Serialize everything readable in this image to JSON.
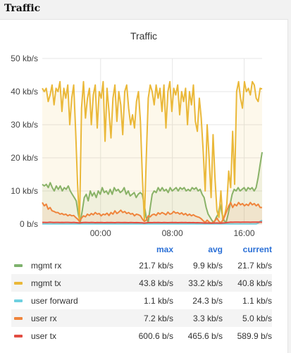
{
  "page": {
    "section_title": "Traffic",
    "panel_title": "Traffic"
  },
  "legend": {
    "headers": [
      "max",
      "avg",
      "current"
    ]
  },
  "chart_data": {
    "type": "line",
    "title": "Traffic",
    "y_unit": "kb/s",
    "ylim": [
      0,
      50
    ],
    "y_ticks": [
      "0 b/s",
      "10 kb/s",
      "20 kb/s",
      "30 kb/s",
      "40 kb/s",
      "50 kb/s"
    ],
    "y_tick_values": [
      0,
      10,
      20,
      30,
      40,
      50
    ],
    "x_range_hours": [
      -6.5,
      18
    ],
    "x_ticks": [
      "00:00",
      "08:00",
      "16:00"
    ],
    "x_tick_values": [
      0,
      8,
      16
    ],
    "grid": true,
    "series": [
      {
        "name": "mgmt rx",
        "color": "#7eb26d",
        "fill": true,
        "max": "21.7 kb/s",
        "avg": "9.9 kb/s",
        "current": "21.7 kb/s",
        "values": [
          12,
          11.5,
          12,
          11,
          12.5,
          11,
          10,
          11.5,
          10.5,
          11.5,
          10,
          11,
          10.5,
          11.5,
          10,
          9,
          8,
          7,
          3,
          0.5,
          4,
          8,
          9,
          7,
          10,
          8.5,
          9.5,
          8,
          10,
          9,
          11,
          9.5,
          10,
          9,
          10.5,
          9,
          11,
          10,
          10.5,
          9.5,
          10,
          11,
          9,
          10,
          8.5,
          9,
          9.5,
          8,
          9,
          9.5,
          9,
          6,
          2,
          0.5,
          5,
          9,
          10,
          9.5,
          11,
          10,
          11,
          10,
          10.5,
          9.5,
          11,
          10,
          10.5,
          11,
          10,
          11,
          10.5,
          11,
          10,
          10.5,
          10,
          11,
          10.5,
          11,
          10,
          10.5,
          9,
          8,
          5,
          3,
          2,
          1,
          0.5,
          2,
          3,
          6,
          3,
          1,
          0.5,
          3,
          6,
          9,
          10.5,
          10,
          11,
          10,
          10.5,
          11,
          10,
          11,
          10.5,
          11,
          10,
          11,
          14,
          18,
          21.7
        ]
      },
      {
        "name": "mgmt tx",
        "color": "#eab839",
        "fill": true,
        "max": "43.8 kb/s",
        "avg": "33.2 kb/s",
        "current": "40.8 kb/s",
        "values": [
          41,
          40,
          41,
          37,
          39,
          42,
          36,
          41,
          40,
          43,
          34,
          41,
          38,
          42,
          30,
          38,
          42,
          28,
          12,
          0.5,
          35,
          43,
          32,
          38,
          41,
          30,
          39,
          42,
          29,
          40,
          38,
          43,
          25,
          41,
          34,
          26,
          38,
          42,
          31,
          40,
          36,
          27,
          40,
          42,
          35,
          30,
          33,
          29,
          37,
          40,
          31,
          14,
          1,
          20,
          38,
          42,
          40,
          36,
          42,
          38,
          41,
          34,
          42,
          29,
          40,
          43,
          34,
          41,
          39,
          42,
          33,
          40,
          37,
          41,
          30,
          40,
          36,
          42,
          31,
          28,
          38,
          32,
          22,
          10,
          30,
          20,
          8,
          27,
          14,
          4,
          2,
          10,
          1,
          3,
          6,
          16,
          11,
          28,
          12,
          40,
          43,
          38,
          35,
          43,
          40,
          41,
          39,
          43,
          42,
          38,
          37,
          41,
          40.8
        ]
      },
      {
        "name": "user forward",
        "color": "#6ed0e0",
        "fill": false,
        "max": "1.1 kb/s",
        "avg": "24.3 b/s",
        "current": "1.1 kb/s",
        "values": [
          0.05,
          0.05,
          0.05,
          0.05,
          0.05,
          0.05,
          0.05,
          0.05,
          0.05,
          0.05,
          0.05,
          0.05,
          0.05,
          0.05,
          0.05,
          0.05,
          0.05,
          0.05,
          0.05,
          0.05,
          0.05,
          0.05,
          0.05,
          0.05,
          0.05,
          0.05,
          0.05,
          0.05,
          0.05,
          0.05,
          0.05,
          0.05,
          0.05,
          0.05,
          0.05,
          0.05,
          0.05,
          0.05,
          0.05,
          0.05,
          0.05,
          0.05,
          0.05,
          0.05,
          0.05,
          0.05,
          0.05,
          0.05,
          0.05,
          0.05,
          0.05,
          0.05,
          0.05,
          0.05,
          0.05,
          0.05,
          0.05,
          0.05,
          0.05,
          0.05,
          0.05,
          0.05,
          0.05,
          0.05,
          0.05,
          0.05,
          0.05,
          0.05,
          0.05,
          0.05,
          0.05,
          0.05,
          0.05,
          0.05,
          0.05,
          0.05,
          0.05,
          0.05,
          0.05,
          0.05,
          0.05,
          0.05,
          0.05,
          0.05,
          0.05,
          0.05,
          0.05,
          0.05,
          0.05,
          0.05,
          0.05,
          0.05,
          0.05,
          0.05,
          0.05,
          0.05,
          0.05,
          0.05,
          0.05,
          0.05,
          0.05,
          0.05,
          0.05,
          0.05,
          0.05,
          0.05,
          0.05,
          0.05,
          0.05,
          0.05,
          0.3,
          0.8,
          1.1
        ]
      },
      {
        "name": "user rx",
        "color": "#ef843c",
        "fill": true,
        "max": "7.2 kb/s",
        "avg": "3.3 kb/s",
        "current": "5.0 kb/s",
        "values": [
          6.5,
          5.5,
          6,
          4.5,
          5,
          4,
          3.8,
          3.5,
          3.5,
          3,
          3.2,
          2.8,
          3,
          2.5,
          2.8,
          2.5,
          2.6,
          2,
          1.5,
          0.8,
          1.8,
          2.5,
          2.2,
          3,
          2.6,
          3.2,
          2.8,
          3.5,
          3,
          3.2,
          2.5,
          3,
          2.8,
          3.3,
          2.6,
          3.5,
          3,
          4,
          3.2,
          3.6,
          4.2,
          3.5,
          3.8,
          3.2,
          3.5,
          3,
          3.2,
          2.5,
          3,
          2.8,
          2.5,
          1.5,
          0.8,
          1.2,
          2.5,
          2.2,
          2.8,
          3,
          2.6,
          3.4,
          3,
          3.5,
          3.2,
          2.8,
          3.6,
          3,
          3.2,
          3.8,
          3.3,
          3.5,
          3,
          3.4,
          2.8,
          3.2,
          2.6,
          3,
          2.5,
          2.8,
          2.4,
          2.2,
          2,
          1.6,
          1,
          0.5,
          1.2,
          0.6,
          0.3,
          0.5,
          1,
          1.8,
          0.8,
          0.4,
          1.2,
          2.5,
          4,
          5.5,
          6.5,
          5,
          6,
          5.5,
          6.5,
          5.8,
          6.2,
          5.5,
          6,
          5.6,
          6.5,
          5.8,
          6.2,
          5.5,
          6,
          5,
          5
        ]
      },
      {
        "name": "user tx",
        "color": "#e24d42",
        "fill": false,
        "max": "600.6 b/s",
        "avg": "465.6 b/s",
        "current": "589.9 b/s",
        "values": [
          0.5,
          0.52,
          0.48,
          0.5,
          0.55,
          0.5,
          0.47,
          0.5,
          0.52,
          0.49,
          0.5,
          0.46,
          0.5,
          0.52,
          0.48,
          0.45,
          0.5,
          0.44,
          0.4,
          0.35,
          0.42,
          0.46,
          0.5,
          0.48,
          0.45,
          0.5,
          0.47,
          0.43,
          0.46,
          0.44,
          0.48,
          0.45,
          0.42,
          0.46,
          0.44,
          0.47,
          0.45,
          0.43,
          0.46,
          0.48,
          0.45,
          0.44,
          0.47,
          0.45,
          0.43,
          0.46,
          0.44,
          0.42,
          0.45,
          0.43,
          0.4,
          0.36,
          0.3,
          0.38,
          0.42,
          0.45,
          0.43,
          0.46,
          0.44,
          0.47,
          0.45,
          0.43,
          0.46,
          0.44,
          0.42,
          0.45,
          0.47,
          0.44,
          0.46,
          0.43,
          0.45,
          0.47,
          0.44,
          0.46,
          0.43,
          0.45,
          0.42,
          0.44,
          0.41,
          0.43,
          0.4,
          0.38,
          0.35,
          0.3,
          0.33,
          0.3,
          0.28,
          0.3,
          0.32,
          0.35,
          0.3,
          0.28,
          0.33,
          0.38,
          0.45,
          0.52,
          0.58,
          0.55,
          0.6,
          0.57,
          0.59,
          0.56,
          0.6,
          0.58,
          0.57,
          0.59,
          0.55,
          0.58,
          0.6,
          0.57,
          0.59,
          0.58,
          0.59
        ]
      }
    ]
  }
}
